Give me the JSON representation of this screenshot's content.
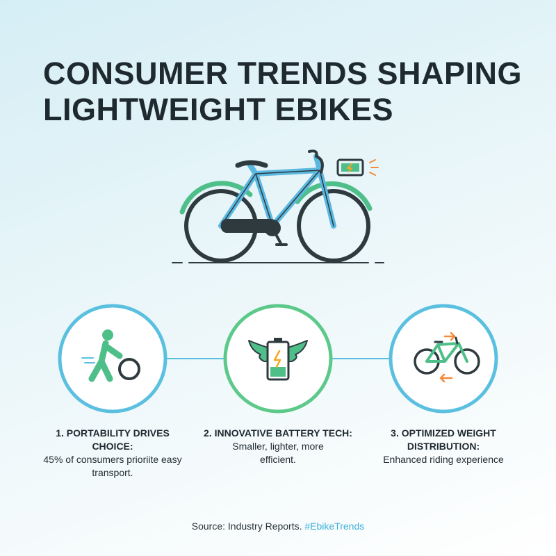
{
  "header": {
    "title": [
      "CONSUMER TRENDS SHAPING",
      "LIGHTWEIGHT EBIKES"
    ]
  },
  "trends": [
    {
      "title": "1. PORTABILITY DRIVES CHOICE:",
      "description": "45% of consumers prioriite easy transport."
    },
    {
      "title": "2. INNOVATIVE BATTERY TECH:",
      "description": "Smaller, lighter, more efficient."
    },
    {
      "title": "3. OPTIMIZED WEIGHT DISTRIBUTION:",
      "description": "Enhanced riding experience"
    }
  ],
  "footer": {
    "source": "Source: Industry Reports.",
    "hashtag": "#EbikeTrends"
  }
}
